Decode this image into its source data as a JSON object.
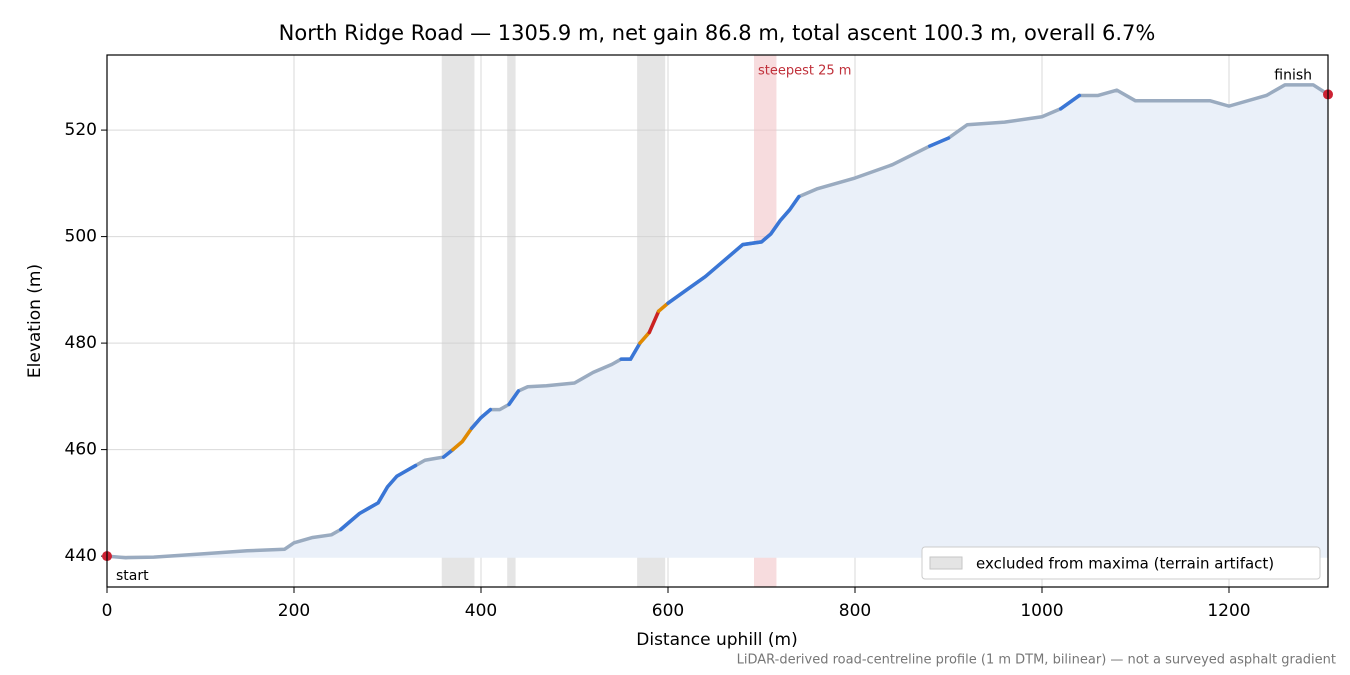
{
  "chart_data": {
    "type": "line",
    "title": "North Ridge Road — 1305.9 m, net gain 86.8 m, total ascent 100.3 m, overall 6.7%",
    "x_label": "Distance uphill (m)",
    "y_label": "Elevation (m)",
    "footnote": "LiDAR-derived road-centreline profile (1 m DTM, bilinear) — not a surveyed asphalt gradient",
    "xlim": [
      0,
      1305.9
    ],
    "ylim": [
      434.2,
      534.1
    ],
    "xticks": [
      0,
      200,
      400,
      600,
      800,
      1000,
      1200
    ],
    "yticks": [
      440,
      460,
      480,
      500,
      520
    ],
    "grid": true,
    "series": [
      {
        "color": "#9aabc0",
        "fill": "#eaf0f9",
        "x": [
          0,
          20,
          50,
          100,
          150,
          190,
          200,
          220,
          240,
          250,
          260,
          270,
          280,
          290,
          300,
          310,
          320,
          330,
          340,
          350,
          360,
          370,
          380,
          390,
          400,
          410,
          420,
          430,
          440,
          450,
          470,
          500,
          520,
          540,
          550,
          560,
          570,
          580,
          590,
          600,
          620,
          640,
          660,
          680,
          700,
          710,
          720,
          730,
          740,
          760,
          800,
          840,
          880,
          900,
          920,
          960,
          1000,
          1020,
          1040,
          1060,
          1080,
          1100,
          1140,
          1180,
          1200,
          1240,
          1260,
          1290,
          1305.9
        ],
        "values": [
          440,
          439.7,
          439.8,
          440.4,
          441,
          441.3,
          442.5,
          443.5,
          444,
          445,
          446.5,
          448,
          449,
          450,
          453,
          455,
          456,
          457,
          458,
          458.3,
          458.6,
          460,
          461.5,
          464,
          466,
          467.5,
          467.5,
          468.5,
          471,
          471.8,
          472,
          472.5,
          474.5,
          476,
          477,
          477,
          480,
          482,
          486,
          487.5,
          490,
          492.5,
          495.5,
          498.5,
          499,
          500.5,
          503,
          505,
          507.5,
          509,
          511,
          513.5,
          517,
          518.5,
          521,
          521.5,
          522.5,
          524,
          526.5,
          526.5,
          527.5,
          525.5,
          525.5,
          525.5,
          524.5,
          526.5,
          528.5,
          528.5,
          526.7
        ]
      }
    ],
    "segments": [
      {
        "from": 250,
        "to": 330,
        "color": "#3a76d6"
      },
      {
        "from": 360,
        "to": 370,
        "color": "#3a76d6"
      },
      {
        "from": 370,
        "to": 390,
        "color": "#e28a00"
      },
      {
        "from": 390,
        "to": 410,
        "color": "#3a76d6"
      },
      {
        "from": 430,
        "to": 440,
        "color": "#3a76d6"
      },
      {
        "from": 550,
        "to": 570,
        "color": "#3a76d6"
      },
      {
        "from": 570,
        "to": 580,
        "color": "#e28a00"
      },
      {
        "from": 580,
        "to": 590,
        "color": "#cc2222"
      },
      {
        "from": 590,
        "to": 600,
        "color": "#e28a00"
      },
      {
        "from": 600,
        "to": 740,
        "color": "#3a76d6"
      },
      {
        "from": 880,
        "to": 900,
        "color": "#3a76d6"
      },
      {
        "from": 1020,
        "to": 1040,
        "color": "#3a76d6"
      }
    ],
    "excluded": {
      "label": "excluded from maxima (terrain artifact)",
      "color": "#cfcfcf",
      "ranges": [
        [
          358,
          393
        ],
        [
          428,
          437
        ],
        [
          567,
          597
        ]
      ]
    },
    "steepest": {
      "label": "steepest 25 m",
      "range": [
        692,
        716
      ],
      "color": "#f2c4c8"
    },
    "start_label": "start",
    "finish_label": "finish",
    "endpoint_color": "#cc2233",
    "legend": "lower right"
  }
}
